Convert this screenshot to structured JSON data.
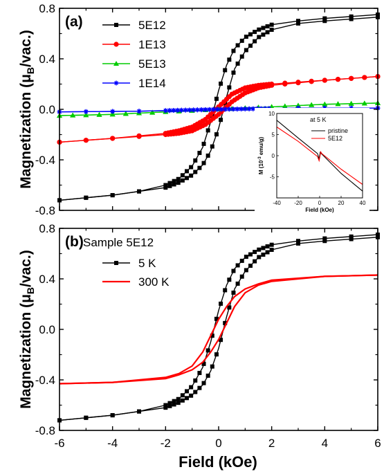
{
  "figure": {
    "shared_xlabel": "Field (kOe)",
    "shared_ylabel": "Magnetization (μ",
    "ylabel_sub": "B",
    "ylabel_tail": "/vac.)"
  },
  "chart_data": [
    {
      "type": "line",
      "panel_label": "(a)",
      "xlabel": "Field (kOe)",
      "ylabel": "Magnetization (μB/vac.)",
      "xlim": [
        -6,
        6
      ],
      "ylim": [
        -0.8,
        0.8
      ],
      "xticks": [
        -6,
        -4,
        -2,
        0,
        2,
        4,
        6
      ],
      "yticks": [
        -0.8,
        -0.4,
        0.0,
        0.4,
        0.8
      ],
      "ytick_labels": [
        "-0.8",
        "-0.4",
        "0.0",
        "0.4",
        "0.8"
      ],
      "legend_position": "top-left",
      "series": [
        {
          "name": "5E12",
          "color": "#000000",
          "marker": "square",
          "upper": [
            [
              -6,
              -0.72
            ],
            [
              -4,
              -0.68
            ],
            [
              -3,
              -0.65
            ],
            [
              -2,
              -0.6
            ],
            [
              -1.5,
              -0.55
            ],
            [
              -1.0,
              -0.45
            ],
            [
              -0.6,
              -0.3
            ],
            [
              -0.3,
              -0.1
            ],
            [
              0,
              0.15
            ],
            [
              0.3,
              0.35
            ],
            [
              0.6,
              0.48
            ],
            [
              1.0,
              0.57
            ],
            [
              1.5,
              0.63
            ],
            [
              2,
              0.67
            ],
            [
              3,
              0.7
            ],
            [
              4,
              0.72
            ],
            [
              6,
              0.75
            ]
          ],
          "lower": [
            [
              -6,
              -0.72
            ],
            [
              -4,
              -0.68
            ],
            [
              -3,
              -0.65
            ],
            [
              -2,
              -0.62
            ],
            [
              -1.5,
              -0.58
            ],
            [
              -1.0,
              -0.52
            ],
            [
              -0.6,
              -0.44
            ],
            [
              -0.3,
              -0.33
            ],
            [
              0,
              -0.15
            ],
            [
              0.3,
              0.1
            ],
            [
              0.6,
              0.32
            ],
            [
              1.0,
              0.46
            ],
            [
              1.5,
              0.57
            ],
            [
              2,
              0.63
            ],
            [
              3,
              0.68
            ],
            [
              4,
              0.7
            ],
            [
              6,
              0.73
            ]
          ]
        },
        {
          "name": "1E13",
          "color": "#ff0000",
          "marker": "circle",
          "upper": [
            [
              -6,
              -0.26
            ],
            [
              -4,
              -0.23
            ],
            [
              -2,
              -0.19
            ],
            [
              -1.5,
              -0.17
            ],
            [
              -1.0,
              -0.14
            ],
            [
              -0.5,
              -0.08
            ],
            [
              0,
              0.02
            ],
            [
              0.5,
              0.12
            ],
            [
              1.0,
              0.17
            ],
            [
              1.5,
              0.19
            ],
            [
              2,
              0.2
            ],
            [
              4,
              0.23
            ],
            [
              6,
              0.26
            ]
          ],
          "lower": [
            [
              -6,
              -0.26
            ],
            [
              -4,
              -0.23
            ],
            [
              -2,
              -0.2
            ],
            [
              -1.5,
              -0.19
            ],
            [
              -1.0,
              -0.17
            ],
            [
              -0.5,
              -0.12
            ],
            [
              0,
              -0.04
            ],
            [
              0.5,
              0.06
            ],
            [
              1.0,
              0.13
            ],
            [
              1.5,
              0.17
            ],
            [
              2,
              0.19
            ],
            [
              4,
              0.23
            ],
            [
              6,
              0.26
            ]
          ]
        },
        {
          "name": "5E13",
          "color": "#00cc00",
          "marker": "triangle",
          "upper": [
            [
              -6,
              -0.05
            ],
            [
              -4,
              -0.04
            ],
            [
              -2,
              -0.02
            ],
            [
              0,
              0.0
            ],
            [
              2,
              0.02
            ],
            [
              4,
              0.04
            ],
            [
              6,
              0.05
            ]
          ],
          "lower": [
            [
              -6,
              -0.05
            ],
            [
              -4,
              -0.04
            ],
            [
              -2,
              -0.02
            ],
            [
              0,
              0.0
            ],
            [
              2,
              0.02
            ],
            [
              4,
              0.04
            ],
            [
              6,
              0.05
            ]
          ]
        },
        {
          "name": "1E14",
          "color": "#0000ff",
          "marker": "star",
          "upper": [
            [
              -6,
              -0.02
            ],
            [
              -3,
              -0.015
            ],
            [
              0,
              0.0
            ],
            [
              3,
              0.01
            ],
            [
              6,
              0.01
            ]
          ],
          "lower": [
            [
              -6,
              -0.02
            ],
            [
              -3,
              -0.015
            ],
            [
              0,
              0.0
            ],
            [
              3,
              0.01
            ],
            [
              6,
              0.01
            ]
          ]
        }
      ],
      "inset": {
        "title": "at 5 K",
        "xlabel": "Field (kOe)",
        "ylabel_main": "M (10",
        "ylabel_sup": "-3",
        "ylabel_tail": " emu/g)",
        "xlim": [
          -40,
          40
        ],
        "ylim": [
          -10,
          10
        ],
        "xticks": [
          -40,
          -20,
          0,
          20,
          40
        ],
        "yticks": [
          -5,
          0,
          5,
          10
        ],
        "series": [
          {
            "name": "pristine",
            "color": "#000000",
            "points": [
              [
                -40,
                8.4
              ],
              [
                -20,
                4.2
              ],
              [
                -2,
                0.5
              ],
              [
                -0.5,
                -0.8
              ],
              [
                0,
                0
              ],
              [
                0.5,
                0.8
              ],
              [
                2,
                0.4
              ],
              [
                20,
                -4.2
              ],
              [
                40,
                -8.4
              ]
            ]
          },
          {
            "name": "5E12",
            "color": "#ff0000",
            "points": [
              [
                -40,
                6.8
              ],
              [
                -20,
                3.4
              ],
              [
                -2,
                -0.2
              ],
              [
                -0.5,
                -1.2
              ],
              [
                0,
                -0.5
              ],
              [
                1,
                0.9
              ],
              [
                2,
                0.5
              ],
              [
                20,
                -3.2
              ],
              [
                40,
                -6.8
              ]
            ]
          }
        ]
      }
    },
    {
      "type": "line",
      "panel_label": "(b)",
      "xlabel": "Field (kOe)",
      "ylabel": "Magnetization (μB/vac.)",
      "xlim": [
        -6,
        6
      ],
      "ylim": [
        -0.8,
        0.8
      ],
      "xticks": [
        -6,
        -4,
        -2,
        0,
        2,
        4,
        6
      ],
      "xtick_labels": [
        "-6",
        "-4",
        "-2",
        "0",
        "2",
        "4",
        "6"
      ],
      "yticks": [
        -0.8,
        -0.4,
        0.0,
        0.4,
        0.8
      ],
      "ytick_labels": [
        "-0.8",
        "-0.4",
        "0.0",
        "0.4",
        "0.8"
      ],
      "legend_title": "Sample 5E12",
      "legend_position": "top-left",
      "series": [
        {
          "name": "5 K",
          "color": "#000000",
          "marker": "square",
          "upper": [
            [
              -6,
              -0.72
            ],
            [
              -4,
              -0.68
            ],
            [
              -3,
              -0.65
            ],
            [
              -2,
              -0.6
            ],
            [
              -1.5,
              -0.55
            ],
            [
              -1.0,
              -0.45
            ],
            [
              -0.6,
              -0.3
            ],
            [
              -0.3,
              -0.1
            ],
            [
              0,
              0.15
            ],
            [
              0.3,
              0.35
            ],
            [
              0.6,
              0.48
            ],
            [
              1.0,
              0.57
            ],
            [
              1.5,
              0.63
            ],
            [
              2,
              0.67
            ],
            [
              3,
              0.7
            ],
            [
              4,
              0.72
            ],
            [
              6,
              0.75
            ]
          ],
          "lower": [
            [
              -6,
              -0.72
            ],
            [
              -4,
              -0.68
            ],
            [
              -3,
              -0.65
            ],
            [
              -2,
              -0.62
            ],
            [
              -1.5,
              -0.58
            ],
            [
              -1.0,
              -0.52
            ],
            [
              -0.6,
              -0.44
            ],
            [
              -0.3,
              -0.33
            ],
            [
              0,
              -0.15
            ],
            [
              0.3,
              0.1
            ],
            [
              0.6,
              0.32
            ],
            [
              1.0,
              0.46
            ],
            [
              1.5,
              0.57
            ],
            [
              2,
              0.63
            ],
            [
              3,
              0.68
            ],
            [
              4,
              0.7
            ],
            [
              6,
              0.73
            ]
          ]
        },
        {
          "name": "300 K",
          "color": "#ff0000",
          "marker": "none",
          "upper": [
            [
              -6,
              -0.43
            ],
            [
              -4,
              -0.42
            ],
            [
              -2,
              -0.38
            ],
            [
              -1.5,
              -0.35
            ],
            [
              -1.0,
              -0.29
            ],
            [
              -0.6,
              -0.18
            ],
            [
              -0.3,
              -0.05
            ],
            [
              0,
              0.08
            ],
            [
              0.3,
              0.18
            ],
            [
              0.6,
              0.26
            ],
            [
              1.0,
              0.32
            ],
            [
              1.5,
              0.36
            ],
            [
              2,
              0.39
            ],
            [
              4,
              0.42
            ],
            [
              6,
              0.43
            ]
          ],
          "lower": [
            [
              -6,
              -0.43
            ],
            [
              -4,
              -0.42
            ],
            [
              -2,
              -0.39
            ],
            [
              -1.5,
              -0.36
            ],
            [
              -1.0,
              -0.32
            ],
            [
              -0.6,
              -0.26
            ],
            [
              -0.3,
              -0.18
            ],
            [
              0,
              -0.08
            ],
            [
              0.3,
              0.05
            ],
            [
              0.6,
              0.18
            ],
            [
              1.0,
              0.29
            ],
            [
              1.5,
              0.35
            ],
            [
              2,
              0.38
            ],
            [
              4,
              0.42
            ],
            [
              6,
              0.43
            ]
          ]
        }
      ]
    }
  ]
}
